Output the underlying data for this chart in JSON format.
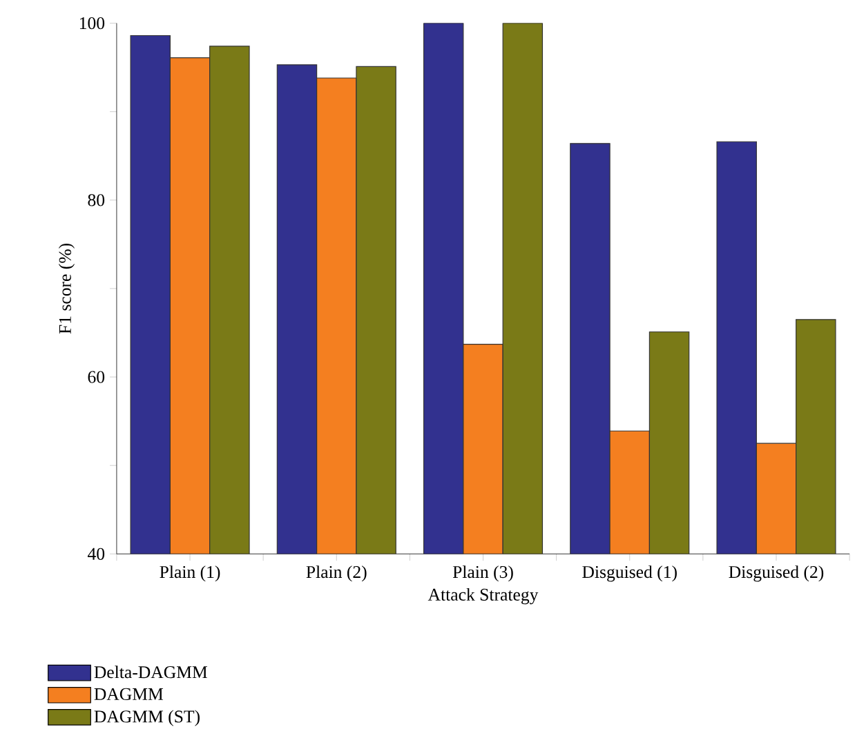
{
  "chart_data": {
    "type": "bar",
    "xlabel": "Attack Strategy",
    "ylabel": "F1 score (%)",
    "categories": [
      "Plain (1)",
      "Plain (2)",
      "Plain (3)",
      "Disguised (1)",
      "Disguised (2)"
    ],
    "series": [
      {
        "name": "Delta-DAGMM",
        "color": "#32318f",
        "values": [
          98.6,
          95.3,
          100,
          86.4,
          86.6
        ]
      },
      {
        "name": "DAGMM",
        "color": "#f47f20",
        "values": [
          96.1,
          93.8,
          63.7,
          53.9,
          52.5
        ]
      },
      {
        "name": "DAGMM (ST)",
        "color": "#7a7a17",
        "values": [
          97.4,
          95.1,
          100,
          65.1,
          66.5
        ]
      }
    ],
    "ylim": [
      40,
      100
    ],
    "yticks": [
      40,
      {
        "value": 50,
        "label": null
      },
      60,
      {
        "value": 70,
        "label": null
      },
      80,
      {
        "value": 90,
        "label": null
      },
      100
    ],
    "grid": false,
    "legend": "bottom left"
  }
}
